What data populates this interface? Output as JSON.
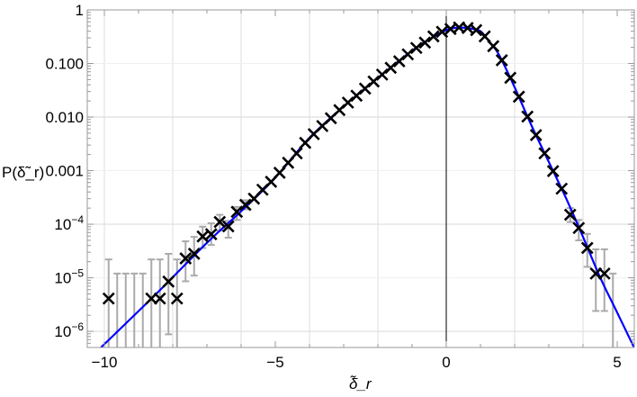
{
  "chart_data": {
    "type": "scatter",
    "xlabel": "δ̃_r",
    "ylabel": "P(δ̃_r)",
    "xlim": [
      -10.5,
      5.5
    ],
    "ylim": [
      5e-07,
      1
    ],
    "yscale": "log",
    "grid": true,
    "x_ticks": [
      {
        "v": -10,
        "label": "−10"
      },
      {
        "v": -5,
        "label": "−5"
      },
      {
        "v": 0,
        "label": "0"
      },
      {
        "v": 5,
        "label": "5"
      }
    ],
    "y_ticks": [
      {
        "v": 1,
        "label": "1"
      },
      {
        "v": 0.1,
        "label": "0.100"
      },
      {
        "v": 0.01,
        "label": "0.010"
      },
      {
        "v": 0.001,
        "label": "0.001"
      },
      {
        "v": 0.0001,
        "base": "10",
        "exp": "−4"
      },
      {
        "v": 1e-05,
        "base": "10",
        "exp": "−5"
      },
      {
        "v": 1e-06,
        "base": "10",
        "exp": "−6"
      }
    ],
    "colors": {
      "points": "#000000",
      "fit": "#0000ff",
      "error_bars": "#aaaaaa",
      "grid": "#dddddd",
      "frame": "#999999"
    },
    "points": {
      "marker": "cross",
      "x": [
        -9.875,
        -9.625,
        -9.375,
        -9.125,
        -8.875,
        -8.625,
        -8.375,
        -8.125,
        -7.875,
        -7.625,
        -7.375,
        -7.125,
        -6.875,
        -6.625,
        -6.375,
        -6.125,
        -5.875,
        -5.625,
        -5.375,
        -5.125,
        -4.875,
        -4.625,
        -4.375,
        -4.125,
        -3.875,
        -3.625,
        -3.375,
        -3.125,
        -2.875,
        -2.625,
        -2.375,
        -2.125,
        -1.875,
        -1.625,
        -1.375,
        -1.125,
        -0.875,
        -0.625,
        -0.375,
        -0.125,
        0.125,
        0.375,
        0.625,
        0.875,
        1.125,
        1.375,
        1.625,
        1.875,
        2.125,
        2.375,
        2.625,
        2.875,
        3.125,
        3.375,
        3.625,
        3.875,
        4.125,
        4.375,
        4.625,
        4.875
      ],
      "y": [
        4.1e-06,
        null,
        null,
        null,
        null,
        4.1e-06,
        4.1e-06,
        8.5e-06,
        4.1e-06,
        2.3e-05,
        2.8e-05,
        5.9e-05,
        6.5e-05,
        0.00011,
        9.1e-05,
        0.00017,
        0.00023,
        0.0003,
        0.00044,
        0.00062,
        0.00091,
        0.0014,
        0.0021,
        0.0033,
        0.0048,
        0.0068,
        0.0095,
        0.0135,
        0.0186,
        0.025,
        0.034,
        0.046,
        0.062,
        0.083,
        0.11,
        0.148,
        0.195,
        0.245,
        0.32,
        0.39,
        0.44,
        0.47,
        0.46,
        0.42,
        0.32,
        0.21,
        0.115,
        0.054,
        0.024,
        0.0102,
        0.0046,
        0.0021,
        0.00098,
        0.00046,
        0.00015,
        8.5e-05,
        3.6e-05,
        1.2e-05,
        1.2e-05,
        null
      ],
      "y_err_low": [
        5e-07,
        5e-07,
        5e-07,
        5e-07,
        5e-07,
        5e-07,
        5e-07,
        8.8e-07,
        5e-07,
        8.6e-06,
        1.1e-05,
        3.6e-05,
        4.1e-05,
        7.6e-05,
        5.6e-05,
        0.00012,
        0.00019,
        null,
        null,
        null,
        null,
        null,
        null,
        null,
        null,
        null,
        null,
        null,
        null,
        null,
        null,
        null,
        null,
        null,
        null,
        null,
        null,
        null,
        null,
        null,
        null,
        null,
        null,
        null,
        null,
        null,
        null,
        null,
        null,
        null,
        null,
        null,
        null,
        null,
        0.00011,
        5e-05,
        1.6e-05,
        2.4e-06,
        2.4e-06,
        5e-07
      ],
      "y_err_high": [
        2.2e-05,
        1.2e-05,
        1.2e-05,
        1.2e-05,
        1.2e-05,
        2.2e-05,
        2.2e-05,
        2.8e-05,
        2.2e-05,
        4.8e-05,
        5.8e-05,
        9e-05,
        0.000104,
        0.00015,
        0.000115,
        0.00021,
        0.00028,
        null,
        null,
        null,
        null,
        null,
        null,
        null,
        null,
        null,
        null,
        null,
        null,
        null,
        null,
        null,
        null,
        null,
        null,
        null,
        null,
        null,
        null,
        null,
        null,
        null,
        null,
        null,
        null,
        null,
        null,
        null,
        null,
        null,
        null,
        null,
        null,
        null,
        0.0002,
        0.00012,
        6.6e-05,
        3.4e-05,
        3.4e-05,
        1.2e-05
      ]
    },
    "fit": {
      "x": [
        -10.1,
        -8.5,
        -7,
        -6,
        -5,
        -4,
        -3,
        -2,
        -1,
        -0.5,
        0,
        0.2,
        0.4,
        0.7,
        1,
        1.25,
        1.5,
        1.75,
        2,
        2.5,
        3,
        3.5,
        4,
        4.5,
        5,
        5.5
      ],
      "y": [
        5e-07,
        4.9e-06,
        4.5e-05,
        0.000174,
        0.00074,
        0.0041,
        0.0158,
        0.054,
        0.174,
        0.28,
        0.42,
        0.455,
        0.47,
        0.45,
        0.4,
        0.26,
        0.162,
        0.079,
        0.036,
        0.0068,
        0.00145,
        0.00031,
        5.8e-05,
        1.02e-05,
        2.24e-06,
        4.9e-07
      ]
    }
  }
}
